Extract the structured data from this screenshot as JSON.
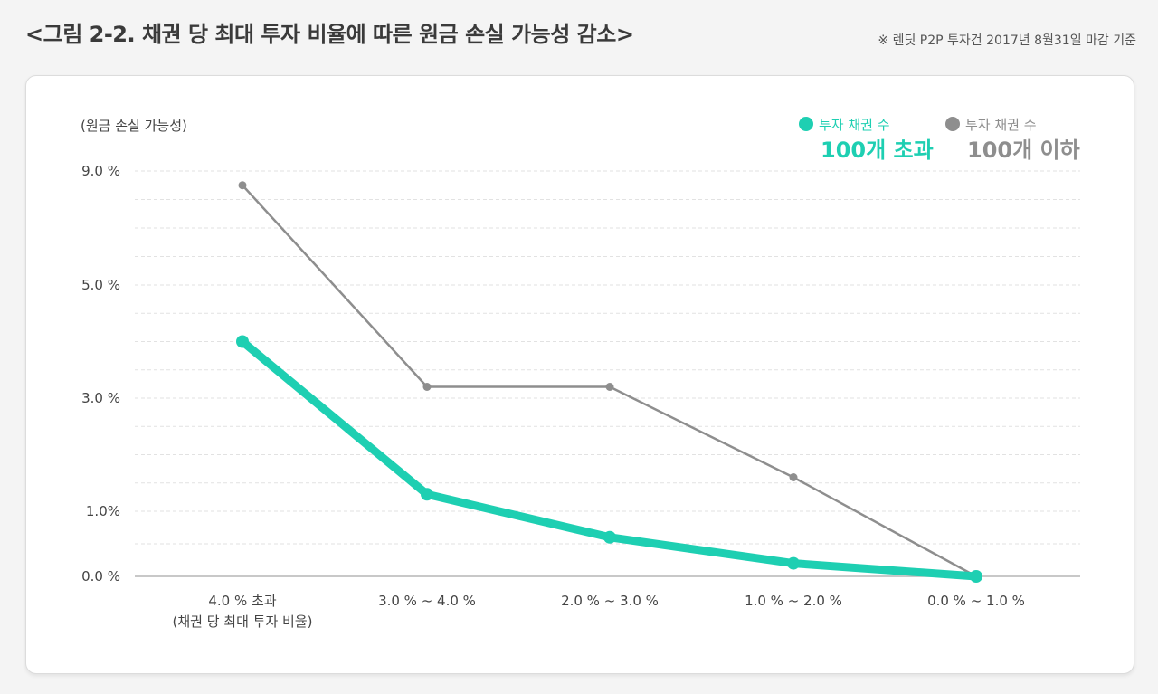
{
  "page": {
    "title": "<그림 2-2. 채권 당 최대 투자 비율에 따른 원금 손실 가능성 감소>",
    "note": "※ 렌딧 P2P 투자건 2017년 8월31일 마감 기준"
  },
  "colors": {
    "accent": "#1ecfb2",
    "secondary": "#8e8e8e",
    "grid": "#e2e2e2",
    "axis": "#b5b5b5"
  },
  "chart_data": {
    "type": "line",
    "title": "채권 당 최대 투자 비율에 따른 원금 손실 가능성 감소",
    "ylabel": "(원금 손실 가능성)",
    "xlabel": "(채권 당 최대 투자 비율)",
    "categories": [
      "4.0 % 초과",
      "3.0 % ~ 4.0 %",
      "2.0 % ~ 3.0 %",
      "1.0 % ~ 2.0 %",
      "0.0 % ~ 1.0 %"
    ],
    "y_ticks": [
      {
        "value": 0,
        "label": "0.0 %"
      },
      {
        "value": 1,
        "label": "1.0%"
      },
      {
        "value": 3,
        "label": "3.0 %"
      },
      {
        "value": 5,
        "label": "5.0 %"
      },
      {
        "value": 9,
        "label": "9.0 %"
      }
    ],
    "y_scale_note": "non-linear axis; tick positions spaced evenly",
    "series": [
      {
        "name": "투자 채권 수 100개 초과",
        "legend_top": "투자 채권 수",
        "legend_bottom": "100개 초과",
        "color": "#1ecfb2",
        "values": [
          4.0,
          1.3,
          0.6,
          0.2,
          0.0
        ]
      },
      {
        "name": "투자 채권 수 100개 이하",
        "legend_top": "투자 채권 수",
        "legend_bottom": "100개 이하",
        "color": "#8e8e8e",
        "values": [
          8.5,
          3.2,
          3.2,
          1.6,
          0.0
        ]
      }
    ]
  }
}
